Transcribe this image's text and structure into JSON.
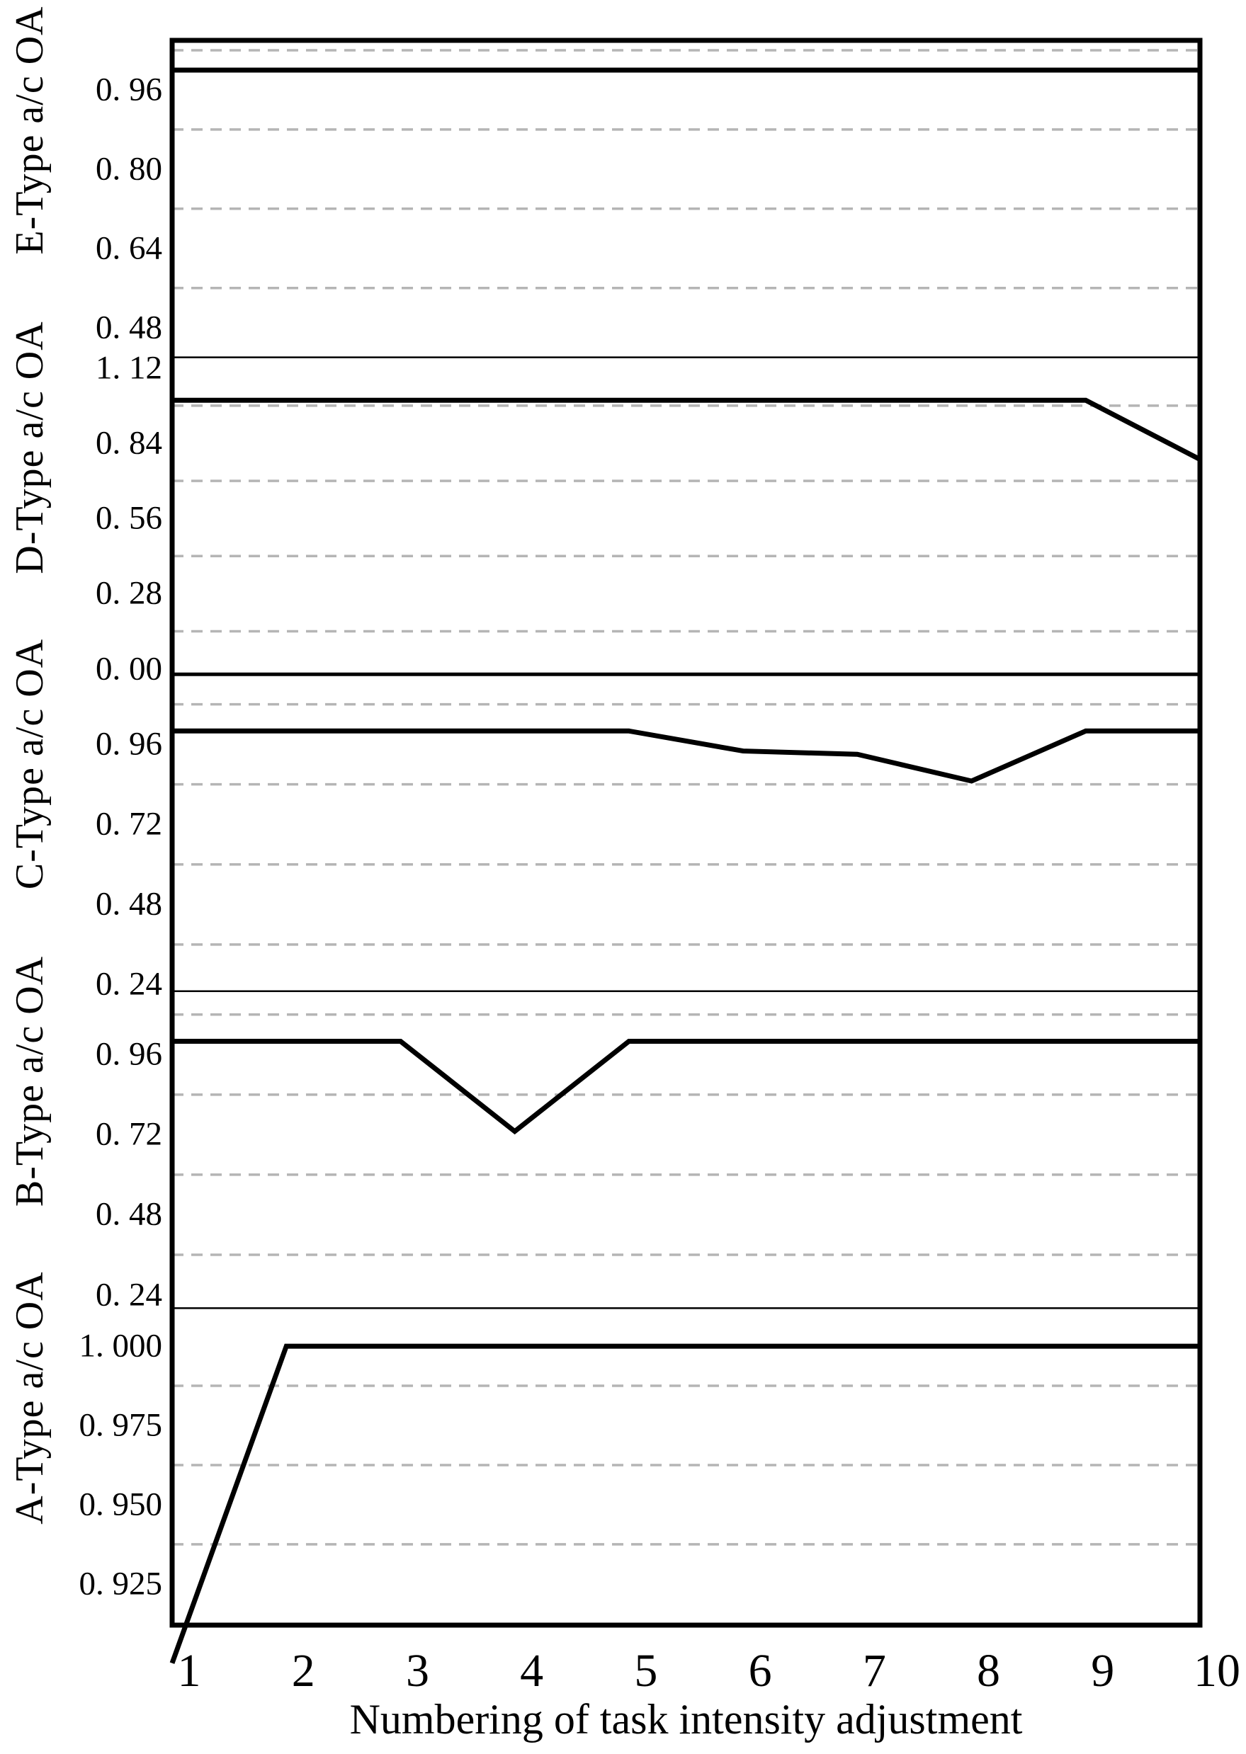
{
  "chart_data": {
    "type": "line",
    "layout": "5 vertically stacked panels sharing one x-axis",
    "xlabel": "Numbering of  task intensity adjustment",
    "x": [
      1,
      2,
      3,
      4,
      5,
      6,
      7,
      8,
      9,
      10
    ],
    "x_tick_labels": [
      "1",
      "2",
      "3",
      "4",
      "5",
      "6",
      "7",
      "8",
      "9",
      "10"
    ],
    "x_range": [
      1,
      10
    ],
    "grid": "horizontal dashed minor gridlines between major ticks",
    "legend_position": "none",
    "line_color": "#000000",
    "grid_color": "#b5b5b5",
    "panels": [
      {
        "id": "E",
        "ylabel": "E-Type a/c OA",
        "y_range": [
          0.42,
          1.06
        ],
        "y_ticks": [
          {
            "label": "0. 96",
            "value": 0.96
          },
          {
            "label": "0. 80",
            "value": 0.8
          },
          {
            "label": "0. 64",
            "value": 0.64
          },
          {
            "label": "0. 48",
            "value": 0.48
          }
        ],
        "minor_gridlines": [
          1.04,
          0.88,
          0.72,
          0.56
        ],
        "values": [
          1.0,
          1.0,
          1.0,
          1.0,
          1.0,
          1.0,
          1.0,
          1.0,
          1.0,
          1.0
        ]
      },
      {
        "id": "D",
        "ylabel": "D-Type a/c OA",
        "y_range": [
          -0.02,
          1.16
        ],
        "y_ticks": [
          {
            "label": "1. 12",
            "value": 1.12
          },
          {
            "label": "0. 84",
            "value": 0.84
          },
          {
            "label": "0. 56",
            "value": 0.56
          },
          {
            "label": "0. 28",
            "value": 0.28
          },
          {
            "label": "0. 00",
            "value": 0.0
          }
        ],
        "minor_gridlines": [
          0.98,
          0.7,
          0.42,
          0.14
        ],
        "values": [
          1.0,
          1.0,
          1.0,
          1.0,
          1.0,
          1.0,
          1.0,
          1.0,
          1.0,
          0.78
        ]
      },
      {
        "id": "C",
        "ylabel": "C-Type a/c OA",
        "y_range": [
          0.22,
          1.17
        ],
        "y_ticks": [
          {
            "label": "0. 96",
            "value": 0.96
          },
          {
            "label": "0. 72",
            "value": 0.72
          },
          {
            "label": "0. 48",
            "value": 0.48
          },
          {
            "label": "0. 24",
            "value": 0.24
          }
        ],
        "minor_gridlines": [
          1.08,
          0.84,
          0.6,
          0.36
        ],
        "values": [
          1.0,
          1.0,
          1.0,
          1.0,
          1.0,
          0.94,
          0.93,
          0.85,
          1.0,
          1.0
        ]
      },
      {
        "id": "B",
        "ylabel": "B-Type a/c OA",
        "y_range": [
          0.2,
          1.15
        ],
        "y_ticks": [
          {
            "label": "0. 96",
            "value": 0.96
          },
          {
            "label": "0. 72",
            "value": 0.72
          },
          {
            "label": "0. 48",
            "value": 0.48
          },
          {
            "label": "0. 24",
            "value": 0.24
          }
        ],
        "minor_gridlines": [
          1.08,
          0.84,
          0.6,
          0.36
        ],
        "values": [
          1.0,
          1.0,
          1.0,
          0.73,
          1.0,
          1.0,
          1.0,
          1.0,
          1.0,
          1.0
        ]
      },
      {
        "id": "A",
        "ylabel": "A-Type a/c OA",
        "y_range": [
          0.912,
          1.012
        ],
        "y_ticks": [
          {
            "label": "1. 000",
            "value": 1.0
          },
          {
            "label": "0. 975",
            "value": 0.975
          },
          {
            "label": "0. 950",
            "value": 0.95
          },
          {
            "label": "0. 925",
            "value": 0.925
          }
        ],
        "minor_gridlines": [
          0.9875,
          0.9625,
          0.9375
        ],
        "values": [
          0.9,
          1.0,
          1.0,
          1.0,
          1.0,
          1.0,
          1.0,
          1.0,
          1.0,
          1.0
        ]
      }
    ]
  }
}
